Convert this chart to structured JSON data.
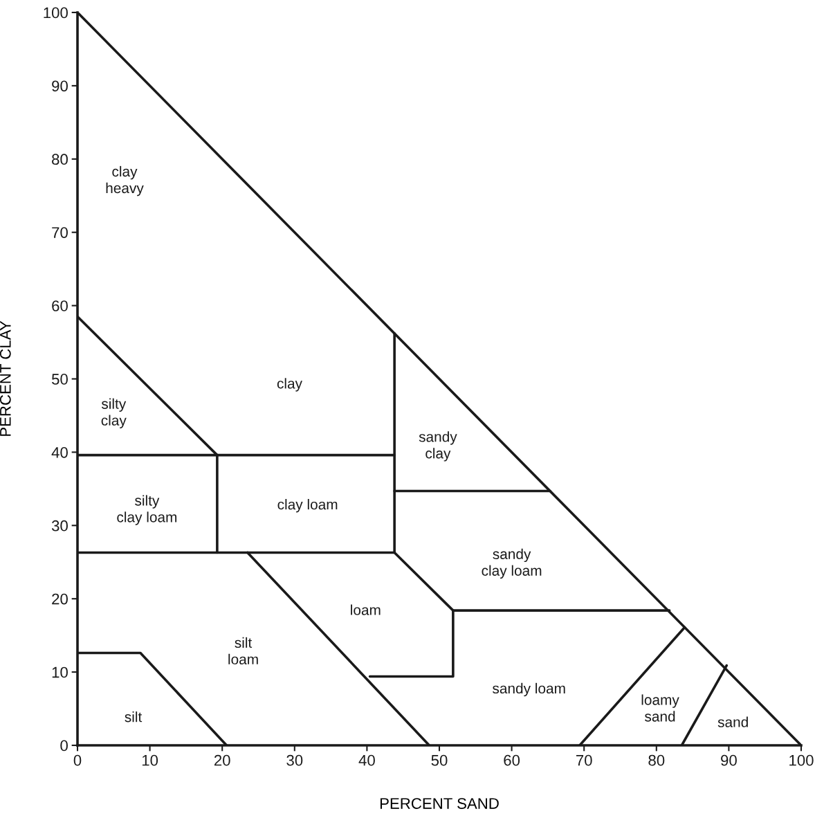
{
  "chart_data": {
    "type": "line",
    "xlabel": "PERCENT SAND",
    "ylabel": "PERCENT CLAY",
    "xlim": [
      0,
      100
    ],
    "ylim": [
      0,
      100
    ],
    "xticks": [
      0,
      10,
      20,
      30,
      40,
      50,
      60,
      70,
      80,
      90,
      100
    ],
    "yticks": [
      0,
      10,
      20,
      30,
      40,
      50,
      60,
      70,
      80,
      90,
      100
    ],
    "grid": false,
    "legend": false,
    "marker": "none",
    "line_style": "solid",
    "series": [
      {
        "color": "#1a1a1a",
        "x": [
          0,
          100
        ],
        "values": [
          100,
          0
        ]
      },
      {
        "color": "#1a1a1a",
        "x": [
          0,
          19.3
        ],
        "values": [
          58.5,
          39.6
        ]
      },
      {
        "color": "#1a1a1a",
        "x": [
          0,
          43.8
        ],
        "values": [
          39.6,
          39.6
        ]
      },
      {
        "color": "#1a1a1a",
        "x": [
          43.8,
          43.8
        ],
        "values": [
          26.3,
          56.2
        ]
      },
      {
        "color": "#1a1a1a",
        "x": [
          19.3,
          19.3
        ],
        "values": [
          26.3,
          39.6
        ]
      },
      {
        "color": "#1a1a1a",
        "x": [
          0,
          43.8
        ],
        "values": [
          26.3,
          26.3
        ]
      },
      {
        "color": "#1a1a1a",
        "x": [
          43.8,
          65.3
        ],
        "values": [
          34.7,
          34.7
        ]
      },
      {
        "color": "#1a1a1a",
        "x": [
          23.5,
          48.6
        ],
        "values": [
          26.3,
          0
        ]
      },
      {
        "color": "#1a1a1a",
        "x": [
          40.4,
          51.9,
          51.9
        ],
        "values": [
          9.4,
          9.4,
          18.4
        ]
      },
      {
        "color": "#1a1a1a",
        "x": [
          43.8,
          51.9,
          81.8
        ],
        "values": [
          26.3,
          18.4,
          18.4
        ]
      },
      {
        "color": "#1a1a1a",
        "x": [
          0,
          8.7,
          20.6
        ],
        "values": [
          12.6,
          12.6,
          0
        ]
      },
      {
        "color": "#1a1a1a",
        "x": [
          69.4,
          83.9
        ],
        "values": [
          0,
          16.1
        ]
      },
      {
        "color": "#1a1a1a",
        "x": [
          83.5,
          89.7
        ],
        "values": [
          0,
          10.9
        ]
      }
    ],
    "annotations": [
      "clay\nheavy",
      "clay",
      "silty\nclay",
      "sandy\nclay",
      "silty\nclay loam",
      "clay loam",
      "sandy\nclay loam",
      "loam",
      "silt\nloam",
      "silt",
      "sandy loam",
      "loamy\nsand",
      "sand"
    ]
  }
}
